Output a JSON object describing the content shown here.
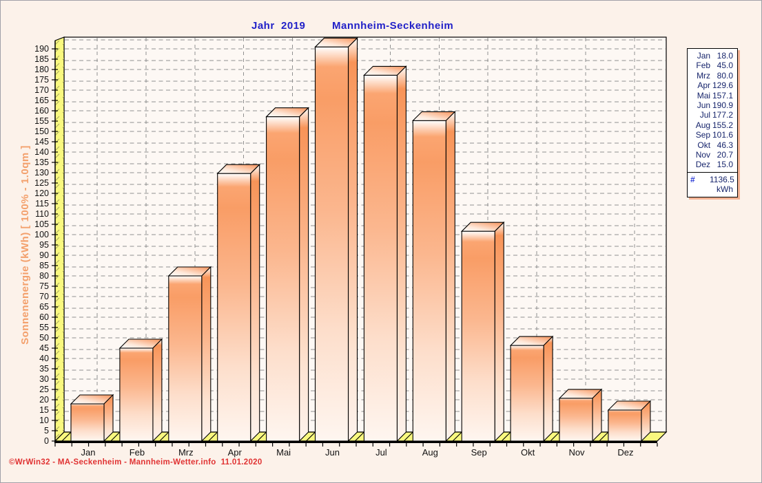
{
  "page": {
    "background": "#fcf2ea",
    "border_color": "#a0a0a8"
  },
  "title": {
    "left": "Jahr  2019",
    "right": "Mannheim-Seckenheim",
    "color": "#2121c8"
  },
  "footer": {
    "text": "©WrWin32 - MA-Seckenheim - Mannheim-Wetter.info  11.01.2020",
    "color": "#e03232"
  },
  "chart_data": {
    "type": "bar",
    "title": "Jahr 2019   Mannheim-Seckenheim",
    "categories": [
      "Jan",
      "Feb",
      "Mrz",
      "Apr",
      "Mai",
      "Jun",
      "Jul",
      "Aug",
      "Sep",
      "Okt",
      "Nov",
      "Dez"
    ],
    "values": [
      18.0,
      45.0,
      80.0,
      129.6,
      157.1,
      190.9,
      177.2,
      155.2,
      101.6,
      46.3,
      20.7,
      15.0
    ],
    "ylabel": "Sonnenenergie  (kWh)   [ 100% - 1.0qm ]",
    "xlabel": "",
    "ylim": [
      0,
      190
    ],
    "ytick_step": 5,
    "gridline_step": 10,
    "grid": true,
    "legend_position": "right",
    "style": "3d-bar",
    "colors": {
      "bar_top_orange": "#f99d66",
      "bar_highlight": "#ffffff",
      "wall_yellow": "#f9f87f",
      "hatch": "#a8a860",
      "grid": "#8f8f8f",
      "plot_bg": "#fdf8f4",
      "axis_text": "#111111",
      "ylabel_color": "#f3a06c"
    }
  },
  "legend": {
    "total_label": "#",
    "total_value": "1136.5",
    "unit": "kWh"
  }
}
